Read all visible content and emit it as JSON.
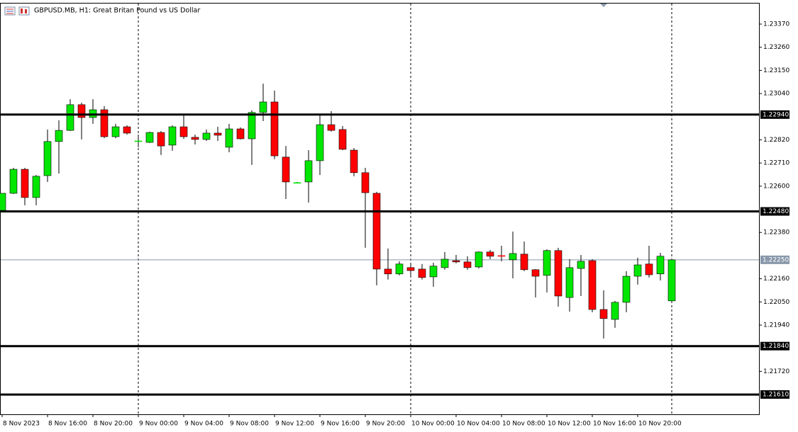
{
  "chart_data": {
    "type": "candlestick",
    "title": "GBPUSD.MB, H1:  Great Britan Pound vs US Dollar",
    "categories": [
      "8 Nov 2023",
      null,
      null,
      null,
      "8 Nov 16:00",
      null,
      null,
      null,
      "8 Nov 20:00",
      null,
      null,
      null,
      "9 Nov 00:00",
      null,
      null,
      null,
      "9 Nov 04:00",
      null,
      null,
      null,
      "9 Nov 08:00",
      null,
      null,
      null,
      "9 Nov 12:00",
      null,
      null,
      null,
      "9 Nov 16:00",
      null,
      null,
      null,
      "9 Nov 20:00",
      null,
      null,
      null,
      "10 Nov 00:00",
      null,
      null,
      null,
      "10 Nov 04:00",
      null,
      null,
      null,
      "10 Nov 08:00",
      null,
      null,
      null,
      "10 Nov 12:00",
      null,
      null,
      null,
      "10 Nov 16:00",
      null,
      null,
      null,
      "10 Nov 20:00",
      null,
      null,
      null
    ],
    "open": [
      1.22485,
      1.22566,
      1.2268,
      1.22546,
      1.2265,
      1.22812,
      1.22865,
      1.22987,
      1.22926,
      1.22963,
      1.22835,
      1.22882,
      1.22815,
      1.22808,
      1.22855,
      1.22795,
      1.22882,
      1.22832,
      1.22822,
      1.22852,
      1.22785,
      1.22872,
      1.22825,
      1.2295,
      1.23,
      1.22738,
      1.22617,
      1.2262,
      1.22721,
      1.22892,
      1.22869,
      1.22771,
      1.22664,
      1.22566,
      1.22206,
      1.22183,
      1.22213,
      1.22206,
      1.22169,
      1.22213,
      1.22246,
      1.2224,
      1.22216,
      1.22287,
      1.2227,
      1.2225,
      1.22277,
      1.22203,
      1.22176,
      1.22294,
      1.22071,
      1.22209,
      1.22246,
      1.22014,
      1.21967,
      1.22048,
      1.22172,
      1.2223,
      1.22183,
      1.22055
    ],
    "high": [
      1.22566,
      1.22687,
      1.22687,
      1.22653,
      1.22869,
      1.22913,
      1.23013,
      1.22997,
      1.23013,
      1.2298,
      1.22896,
      1.22889,
      1.22845,
      1.22859,
      1.22862,
      1.22889,
      1.22936,
      1.22845,
      1.22869,
      1.22882,
      1.22896,
      1.22879,
      1.2296,
      1.23087,
      1.23054,
      1.22791,
      1.2262,
      1.22771,
      1.22939,
      1.22956,
      1.22886,
      1.22781,
      1.22687,
      1.22573,
      1.22304,
      1.22243,
      1.22236,
      1.2223,
      1.22236,
      1.22287,
      1.22273,
      1.22267,
      1.2229,
      1.22297,
      1.22317,
      1.22384,
      1.22337,
      1.22206,
      1.223,
      1.22307,
      1.22253,
      1.22273,
      1.22253,
      1.22105,
      1.22055,
      1.22196,
      1.2226,
      1.22317,
      1.22283,
      1.2225
    ],
    "low": [
      1.22485,
      1.22563,
      1.22509,
      1.22509,
      1.2262,
      1.2266,
      1.22862,
      1.22822,
      1.22896,
      1.22828,
      1.22828,
      1.22845,
      1.22785,
      1.22805,
      1.22748,
      1.22768,
      1.22825,
      1.22798,
      1.22815,
      1.22815,
      1.22761,
      1.22822,
      1.22701,
      1.22909,
      1.22728,
      1.22539,
      1.22613,
      1.22522,
      1.22653,
      1.22859,
      1.22771,
      1.22647,
      1.22307,
      1.22129,
      1.22156,
      1.22176,
      1.22176,
      1.22156,
      1.22122,
      1.22203,
      1.22233,
      1.22203,
      1.22209,
      1.22253,
      1.22243,
      1.22162,
      1.22196,
      1.22071,
      1.22095,
      1.22028,
      1.22004,
      1.22078,
      1.22001,
      1.21876,
      1.21927,
      1.22001,
      1.22132,
      1.22166,
      1.22152,
      1.22055
    ],
    "close": [
      1.22566,
      1.2268,
      1.22546,
      1.22647,
      1.22812,
      1.22865,
      1.22987,
      1.22926,
      1.22963,
      1.22835,
      1.22882,
      1.22852,
      1.22815,
      1.22855,
      1.22791,
      1.22882,
      1.22835,
      1.22822,
      1.22852,
      1.22842,
      1.22872,
      1.22825,
      1.2295,
      1.23,
      1.22744,
      1.2262,
      1.22617,
      1.22721,
      1.22892,
      1.22865,
      1.22775,
      1.22664,
      1.22569,
      1.22206,
      1.22183,
      1.2223,
      1.22199,
      1.22166,
      1.2222,
      1.22253,
      1.2224,
      1.22213,
      1.22287,
      1.22267,
      1.22267,
      1.2228,
      1.22203,
      1.22172,
      1.22294,
      1.22078,
      1.22213,
      1.22243,
      1.22014,
      1.21971,
      1.22048,
      1.22172,
      1.22226,
      1.22179,
      1.22267,
      1.2225
    ],
    "up_color": "#00e600",
    "down_color": "#ff0000",
    "ylim": [
      1.21516,
      1.23471
    ],
    "yticks": [
      {
        "value": 1.2337,
        "label": "1.23370"
      },
      {
        "value": 1.2326,
        "label": "1.23260"
      },
      {
        "value": 1.2315,
        "label": "1.23150"
      },
      {
        "value": 1.2304,
        "label": "1.23040"
      },
      {
        "value": 1.2282,
        "label": "1.22820"
      },
      {
        "value": 1.2271,
        "label": "1.22710"
      },
      {
        "value": 1.226,
        "label": "1.22600"
      },
      {
        "value": 1.2238,
        "label": "1.22380"
      },
      {
        "value": 1.2216,
        "label": "1.22160"
      },
      {
        "value": 1.2205,
        "label": "1.22050"
      },
      {
        "value": 1.2194,
        "label": "1.21940"
      },
      {
        "value": 1.2172,
        "label": "1.21720"
      }
    ],
    "levels": [
      {
        "value": 1.2294,
        "label": "1.22940"
      },
      {
        "value": 1.2248,
        "label": "1.22480"
      },
      {
        "value": 1.2184,
        "label": "1.21840"
      },
      {
        "value": 1.2161,
        "label": "1.21610"
      }
    ],
    "last_price": {
      "value": 1.2225,
      "label": "1.22250"
    }
  }
}
